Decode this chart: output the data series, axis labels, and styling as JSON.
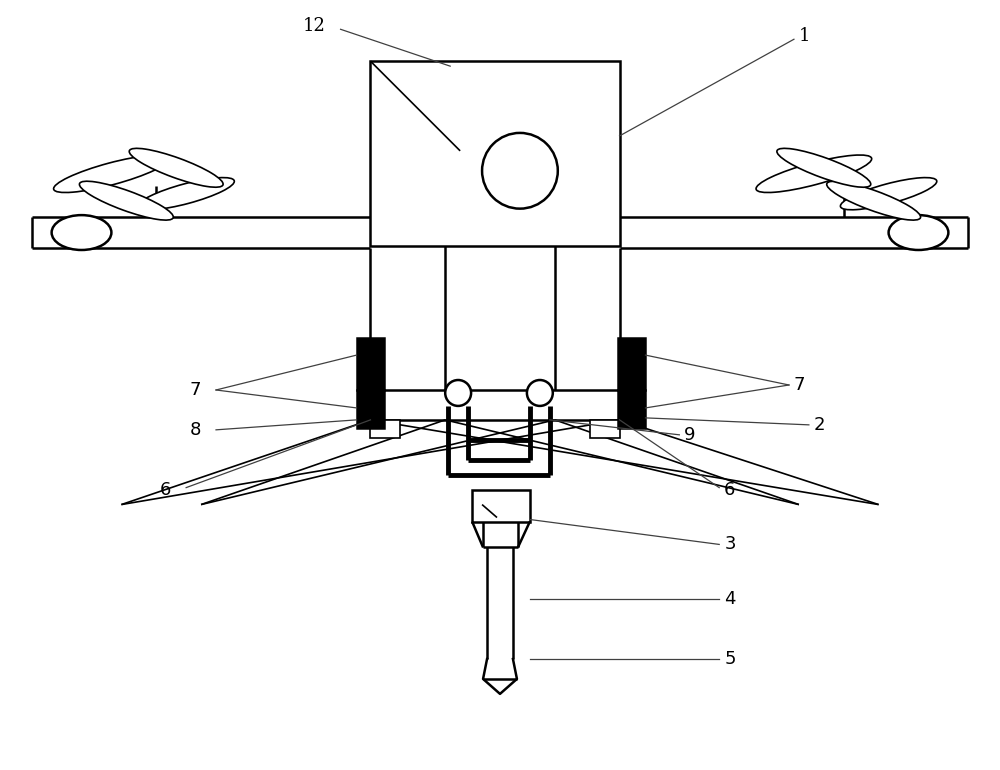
{
  "bg_color": "#ffffff",
  "line_color": "#000000",
  "figsize": [
    10.0,
    7.7
  ],
  "dpi": 100
}
